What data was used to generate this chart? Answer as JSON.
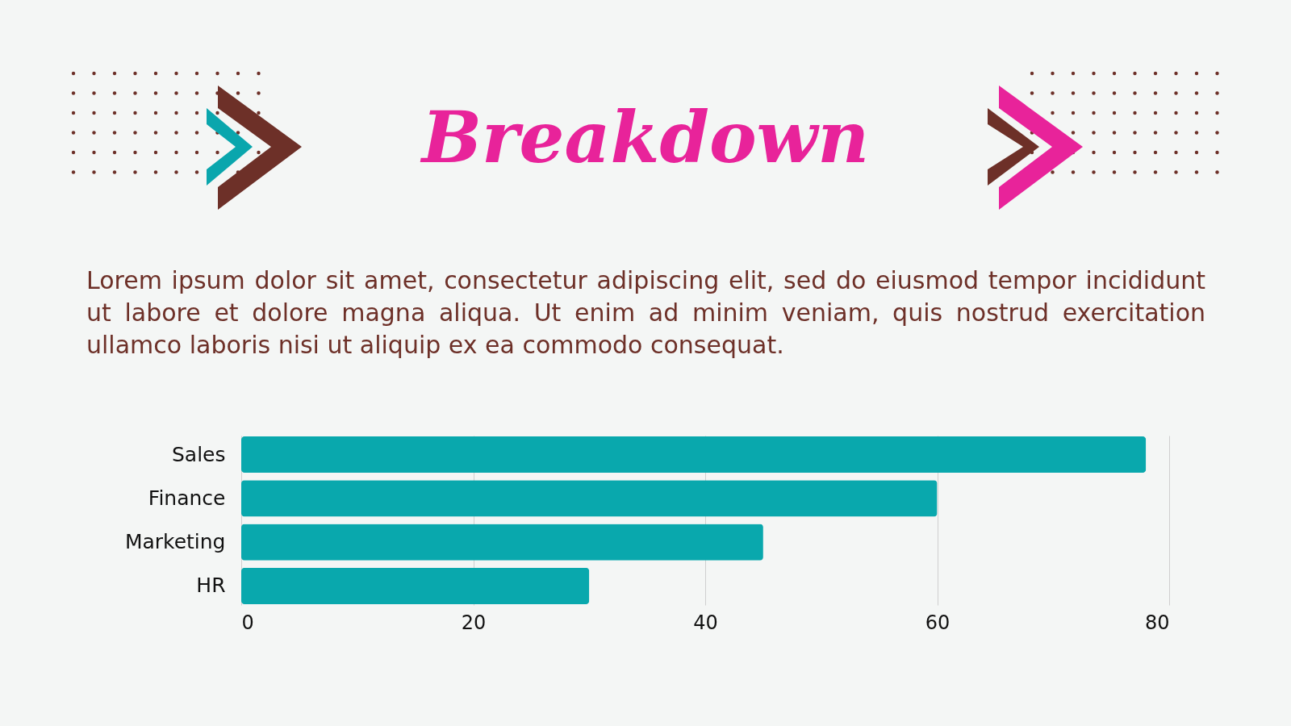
{
  "chart_data": {
    "type": "bar",
    "orientation": "horizontal",
    "title": "Breakdown",
    "subtitle": "Lorem ipsum dolor sit amet, consectetur adipiscing elit, sed do eiusmod tempor incididunt ut labore et dolore magna aliqua. Ut enim ad minim veniam, quis nostrud exercitation ullamco laboris nisi ut aliquip ex ea commodo consequat.",
    "categories": [
      "Sales",
      "Finance",
      "Marketing",
      "HR"
    ],
    "values": [
      78,
      60,
      45,
      30
    ],
    "color": "#09a8ad",
    "xlim": [
      0,
      80
    ],
    "xticks": [
      0,
      20,
      40,
      60,
      80
    ],
    "grid": "x"
  }
}
